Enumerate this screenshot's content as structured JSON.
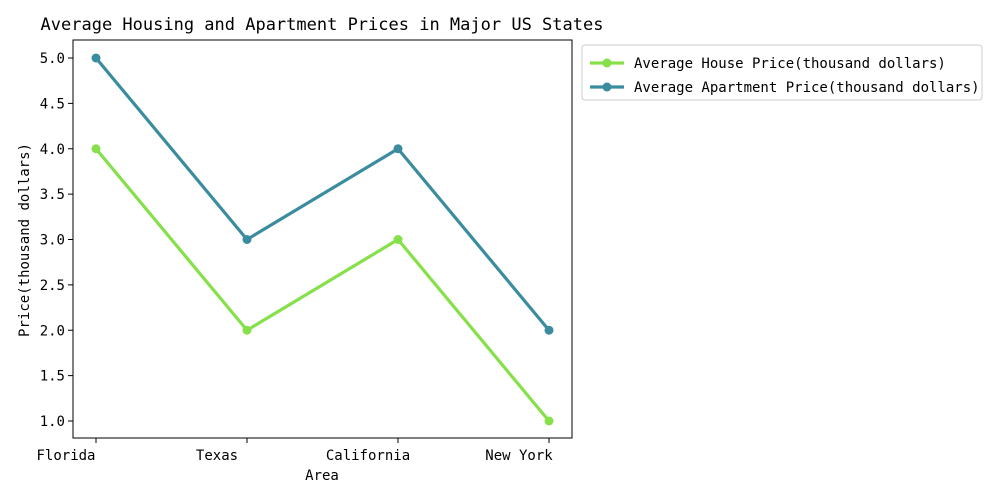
{
  "chart_data": {
    "type": "line",
    "title": "Average Housing and Apartment Prices in Major US States",
    "xlabel": "Area",
    "ylabel": "Price(thousand dollars)",
    "categories": [
      "Florida",
      "Texas",
      "California",
      "New York"
    ],
    "yticks": [
      "1.0",
      "1.5",
      "2.0",
      "2.5",
      "3.0",
      "3.5",
      "4.0",
      "4.5",
      "5.0"
    ],
    "ylim": [
      0.8,
      5.2
    ],
    "grid": false,
    "legend_position": "outside-top-right",
    "series": [
      {
        "name": "Average House Price(thousand dollars)",
        "values": [
          4,
          2,
          3,
          1
        ],
        "color": "#86e04a"
      },
      {
        "name": "Average Apartment Price(thousand dollars)",
        "values": [
          5,
          3,
          4,
          2
        ],
        "color": "#3a8c9e"
      }
    ]
  }
}
